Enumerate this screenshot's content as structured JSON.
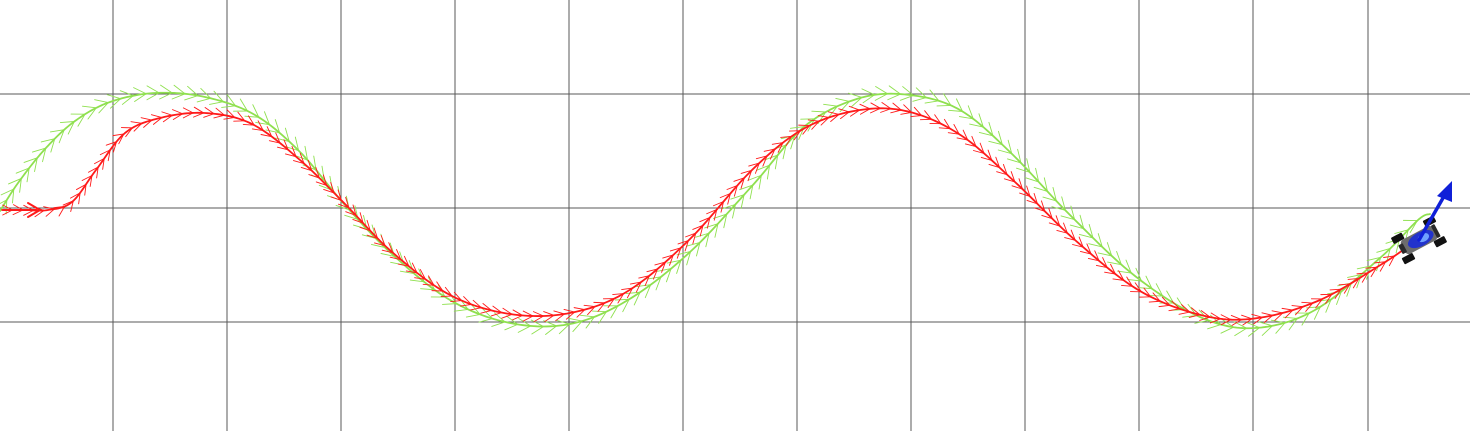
{
  "scene": {
    "background": "#ffffff",
    "grid_color": "#595959",
    "reference_path_color": "#8fe04f",
    "actual_path_color": "#ff1a1a",
    "heading_arrow_color": "#1020d8",
    "vehicle_body_color": "#2233cc",
    "wheel_color": "#111111",
    "grid": "on",
    "heading_direction": "up-right",
    "vehicle_icon": "rc-car-topdown-icon"
  }
}
